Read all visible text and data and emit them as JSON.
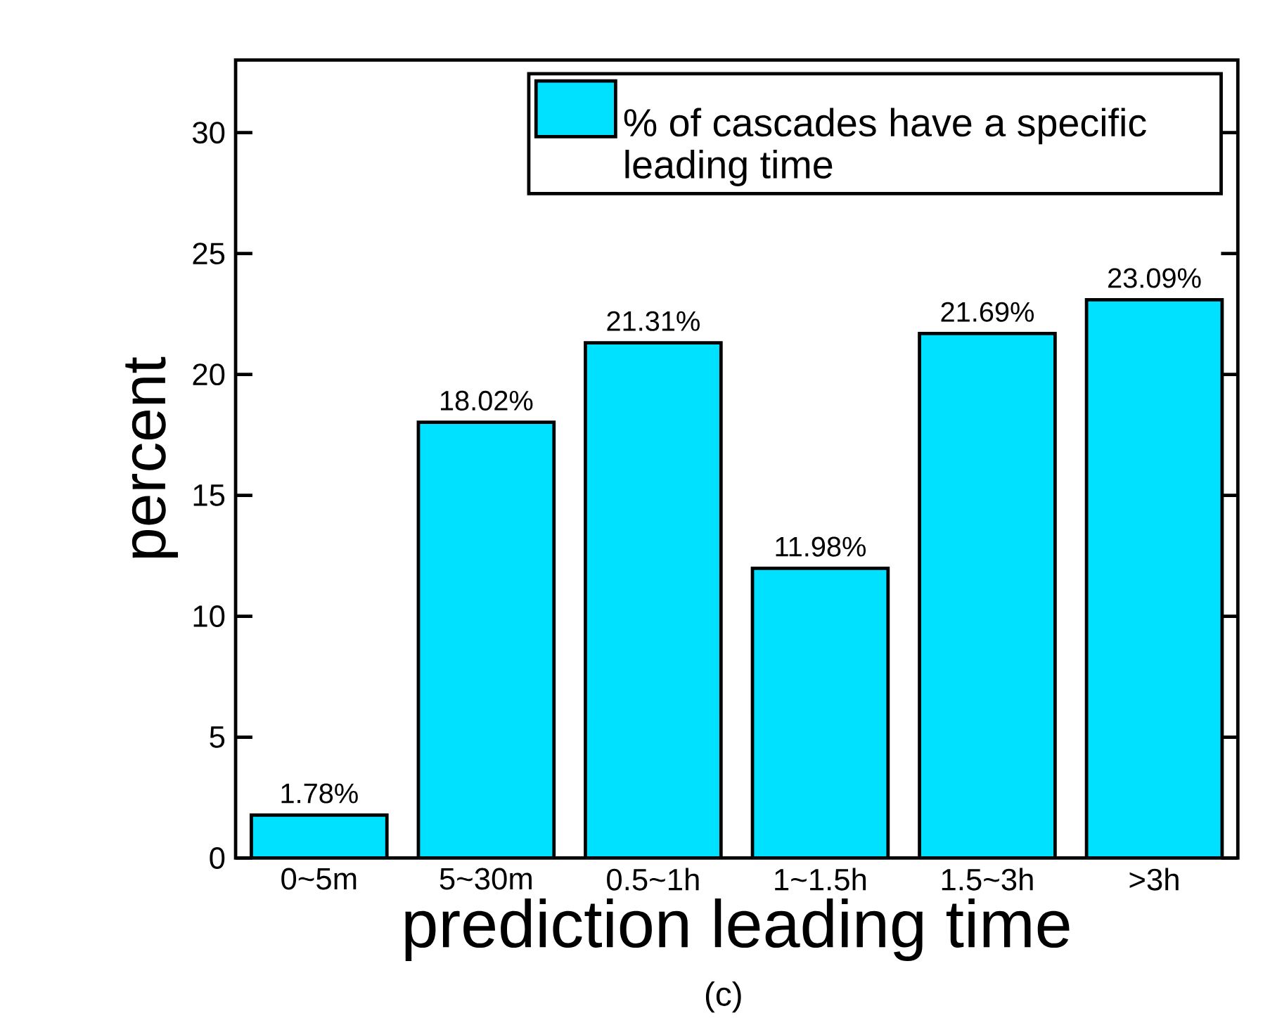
{
  "chart_data": {
    "type": "bar",
    "xlabel": "prediction leading time",
    "ylabel": "percent",
    "categories": [
      "0~5m",
      "5~30m",
      "0.5~1h",
      "1~1.5h",
      "1.5~3h",
      ">3h"
    ],
    "series": [
      {
        "name": "% of cascades have a specific leading time",
        "color": "#00e1ff",
        "values": [
          1.78,
          18.02,
          21.31,
          11.98,
          21.69,
          23.09
        ],
        "value_labels": [
          "1.78%",
          "18.02%",
          "21.31%",
          "11.98%",
          "21.69%",
          "23.09%"
        ]
      }
    ],
    "ylim": [
      0,
      33
    ],
    "yticks": [
      0,
      5,
      10,
      15,
      20,
      25,
      30
    ],
    "legend": "top right",
    "annotations": [
      "(c)"
    ]
  }
}
